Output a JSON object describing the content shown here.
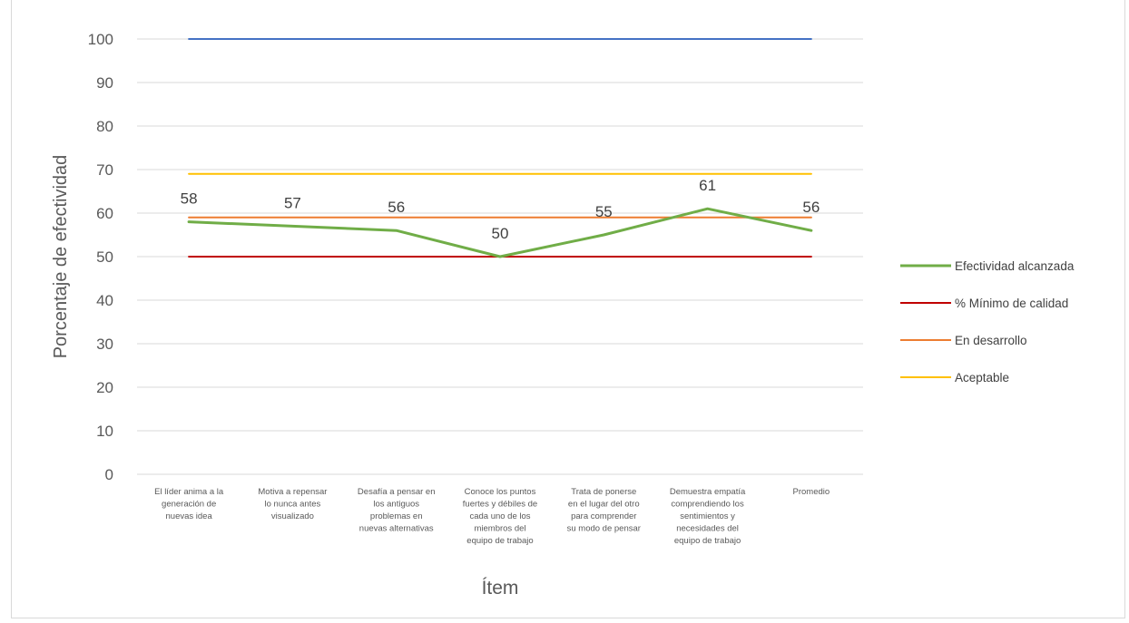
{
  "chart_data": {
    "type": "line",
    "xlabel": "Ítem",
    "ylabel": "Porcentaje de efectividad",
    "ylim": [
      0,
      100
    ],
    "yticks": [
      0,
      10,
      20,
      30,
      40,
      50,
      60,
      70,
      80,
      90,
      100
    ],
    "grid": true,
    "legend_position": "right",
    "categories": [
      [
        "El líder anima a la",
        "generación de",
        "nuevas idea"
      ],
      [
        "Motiva a repensar",
        "lo nunca antes",
        "visualizado"
      ],
      [
        "Desafía a pensar en",
        "los antiguos",
        "problemas en",
        "nuevas alternativas"
      ],
      [
        "Conoce los puntos",
        "fuertes y débiles de",
        "cada uno de los",
        "miembros del",
        "equipo de trabajo"
      ],
      [
        "Trata de ponerse",
        "en el lugar del otro",
        "para comprender",
        "su modo de pensar"
      ],
      [
        "Demuestra empatía",
        "comprendiendo los",
        "sentimientos y",
        "necesidades del",
        "equipo de trabajo"
      ],
      [
        "Promedio"
      ]
    ],
    "series": [
      {
        "name": "Efectividad alcanzada",
        "values": [
          58,
          57,
          56,
          50,
          55,
          61,
          56
        ],
        "color": "#70ad47",
        "data_labels": true
      },
      {
        "name": "% Mínimo de calidad",
        "values": [
          50,
          50,
          50,
          50,
          50,
          50,
          50
        ],
        "color": "#c00000"
      },
      {
        "name": "En desarrollo",
        "values": [
          59,
          59,
          59,
          59,
          59,
          59,
          59
        ],
        "color": "#ed7d31"
      },
      {
        "name": "Aceptable",
        "values": [
          69,
          69,
          69,
          69,
          69,
          69,
          69
        ],
        "color": "#ffc000"
      },
      {
        "values": [
          100,
          100,
          100,
          100,
          100,
          100,
          100
        ],
        "color": "#4472c4"
      }
    ]
  }
}
